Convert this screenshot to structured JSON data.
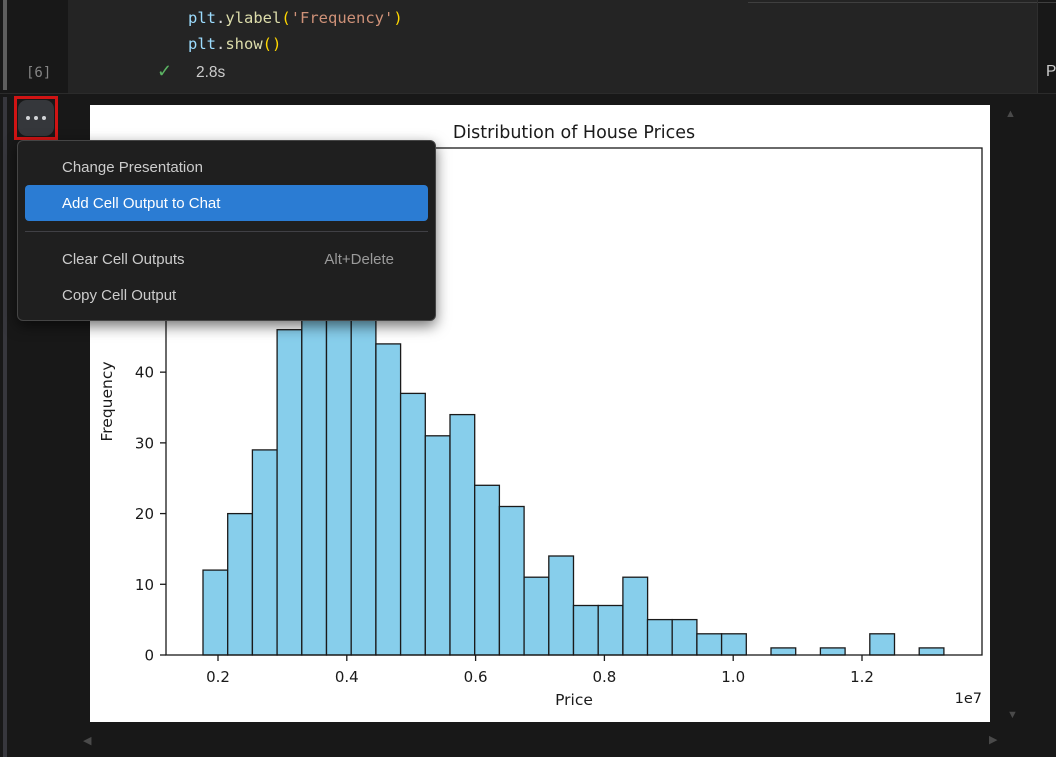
{
  "cell": {
    "execution_count": "[6]",
    "status_icon": "check-icon",
    "duration": "2.8s",
    "language": "Python",
    "code_lines": [
      [
        {
          "text": "plt",
          "type": "variable"
        },
        {
          "text": ".",
          "type": "punct"
        },
        {
          "text": "ylabel",
          "type": "function"
        },
        {
          "text": "(",
          "type": "bracket"
        },
        {
          "text": "'Frequency'",
          "type": "string"
        },
        {
          "text": ")",
          "type": "bracket"
        }
      ],
      [
        {
          "text": "plt",
          "type": "variable"
        },
        {
          "text": ".",
          "type": "punct"
        },
        {
          "text": "show",
          "type": "function"
        },
        {
          "text": "(",
          "type": "bracket"
        },
        {
          "text": ")",
          "type": "bracket"
        }
      ]
    ]
  },
  "overflow_button": {
    "icon": "ellipsis-icon",
    "annotation_color": "#d01414"
  },
  "menu": {
    "accent_color": "#2B7CD3",
    "items": [
      {
        "label": "Change Presentation",
        "shortcut": "",
        "highlighted": false
      },
      {
        "label": "Add Cell Output to Chat",
        "shortcut": "",
        "highlighted": true
      },
      {
        "separator": true
      },
      {
        "label": "Clear Cell Outputs",
        "shortcut": "Alt+Delete",
        "highlighted": false
      },
      {
        "label": "Copy Cell Output",
        "shortcut": "",
        "highlighted": false
      }
    ]
  },
  "chart_data": {
    "type": "bar",
    "subtype": "histogram",
    "title": "Distribution of House Prices",
    "xlabel": "Price",
    "ylabel": "Frequency",
    "x_offset_label": "1e7",
    "bar_fill": "#87CEEB",
    "bar_edge": "#1a1a1a",
    "bin_start": 0.1767,
    "bin_width": 0.03835,
    "x_unit": "1e7",
    "counts": [
      12,
      20,
      29,
      46,
      60,
      68,
      62,
      44,
      37,
      31,
      34,
      24,
      21,
      11,
      14,
      7,
      7,
      11,
      5,
      5,
      3,
      3,
      0,
      1,
      0,
      1,
      0,
      3,
      0,
      1
    ],
    "note": "bins 5-7 tops occluded by context menu; values estimated",
    "xticks": [
      0.2,
      0.4,
      0.6,
      0.8,
      1.0,
      1.2
    ],
    "yticks": [
      0,
      10,
      20,
      30,
      40
    ],
    "xlim": [
      0.1767,
      1.3287
    ],
    "ylim": [
      0,
      71.7
    ],
    "grid": false,
    "legend": null
  },
  "scrollbars": {
    "up_icon": "▲",
    "down_icon": "▼",
    "left_icon": "◀",
    "right_icon": "▶"
  }
}
